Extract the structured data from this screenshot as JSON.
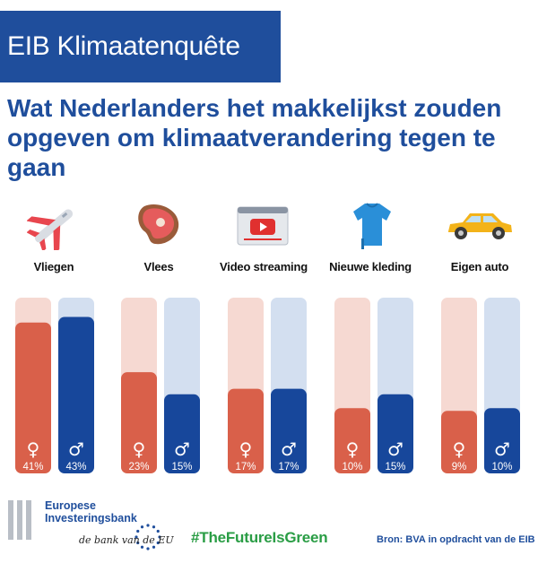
{
  "header": {
    "title": "EIB Klimaatenquête"
  },
  "headline": "Wat Nederlanders het makkelijkst zouden opgeven om klimaatverandering tegen te gaan",
  "categories": [
    {
      "label": "Vliegen",
      "icon": "airplane-icon"
    },
    {
      "label": "Vlees",
      "icon": "steak-icon"
    },
    {
      "label": "Video streaming",
      "icon": "video-streaming-icon"
    },
    {
      "label": "Nieuwe kleding",
      "icon": "tshirt-icon"
    },
    {
      "label": "Eigen auto",
      "icon": "car-icon"
    }
  ],
  "chart_data": {
    "type": "bar",
    "categories": [
      "Vliegen",
      "Vlees",
      "Video streaming",
      "Nieuwe kleding",
      "Eigen auto"
    ],
    "series": [
      {
        "symbol": "♀",
        "values": [
          41,
          23,
          17,
          10,
          9
        ],
        "labels": [
          "41%",
          "23%",
          "17%",
          "10%",
          "9%"
        ],
        "color": "#d9604a",
        "track_color": "#f6d9d2"
      },
      {
        "symbol": "♂",
        "values": [
          43,
          15,
          17,
          15,
          10
        ],
        "labels": [
          "43%",
          "15%",
          "17%",
          "15%",
          "10%"
        ],
        "color": "#17479b",
        "track_color": "#d3dff0"
      }
    ],
    "ylim": [
      0,
      50
    ]
  },
  "footer": {
    "logo_line1": "Europese",
    "logo_line2": "Investeringsbank",
    "logo_tagline": "de bank van de EU",
    "hashtag": "#TheFutureIsGreen",
    "source": "Bron: BVA in opdracht van de EIB"
  },
  "colors": {
    "brand_blue": "#1f4e9c",
    "green": "#2a9d45"
  }
}
